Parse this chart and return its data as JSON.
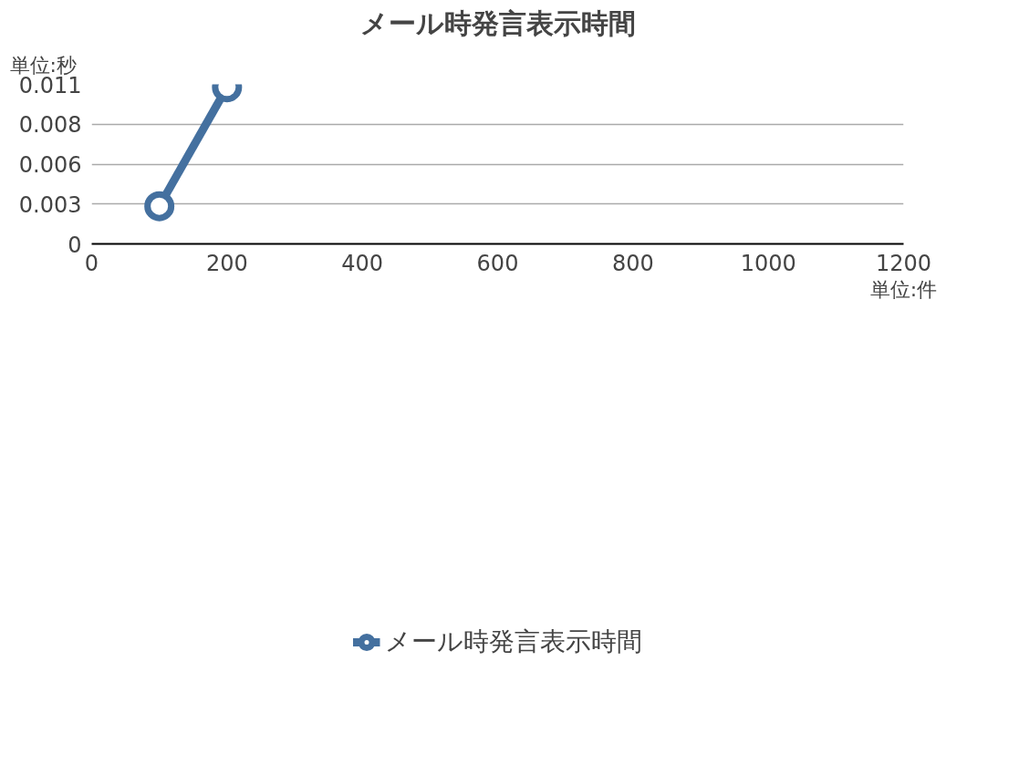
{
  "chart_data": {
    "type": "line",
    "title": "メール時発言表示時間",
    "ylabel": "単位:秒",
    "xlabel": "単位:件",
    "series": [
      {
        "name": "メール時発言表示時間",
        "color": "#44709f",
        "x": [
          100,
          200
        ],
        "values": [
          0.0026,
          0.0108
        ]
      }
    ],
    "xlim": [
      0,
      1200
    ],
    "xticks": [
      0,
      200,
      400,
      600,
      800,
      1000,
      1200
    ],
    "ylim": [
      0,
      0.011
    ],
    "yticks": [
      0,
      {
        "value": 0.00275,
        "label": "0.003"
      },
      {
        "value": 0.0055,
        "label": "0.006"
      },
      {
        "value": 0.00825,
        "label": "0.008"
      },
      {
        "value": 0.011,
        "label": "0.011"
      }
    ],
    "grid": "y",
    "legend": "bottom",
    "marker": "circle",
    "line_style": "solid"
  }
}
